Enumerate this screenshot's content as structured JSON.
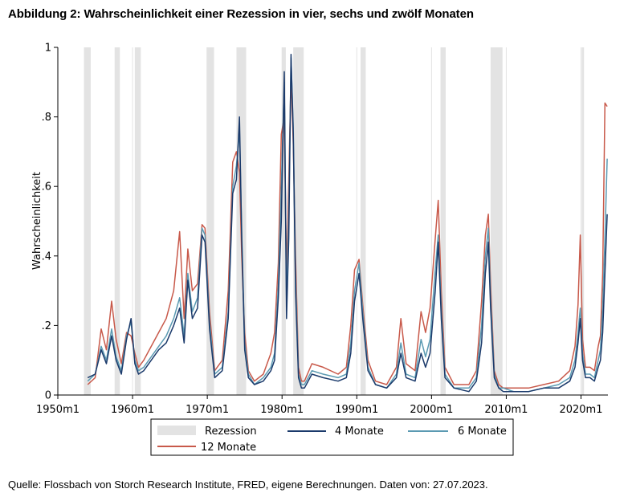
{
  "title": "Abbildung 2: Wahrscheinlichkeit einer Rezession in vier, sechs und zwölf Monaten",
  "source": "Quelle: Flossbach von Storch Research Institute, FRED, eigene Berechnungen. Daten von: 27.07.2023.",
  "chart_data": {
    "type": "line",
    "ylabel": "Wahrscheinlichkeit",
    "xlabel": "",
    "xlim": [
      1950,
      2023.6
    ],
    "ylim": [
      0,
      1
    ],
    "x_ticks": [
      {
        "value": 1950,
        "label": "1950m1"
      },
      {
        "value": 1960,
        "label": "1960m1"
      },
      {
        "value": 1970,
        "label": "1970m1"
      },
      {
        "value": 1980,
        "label": "1980m1"
      },
      {
        "value": 1990,
        "label": "1990m1"
      },
      {
        "value": 2000,
        "label": "2000m1"
      },
      {
        "value": 2010,
        "label": "2010m1"
      },
      {
        "value": 2020,
        "label": "2020m1"
      }
    ],
    "y_ticks": [
      {
        "value": 0,
        "label": "0"
      },
      {
        "value": 0.2,
        "label": ".2"
      },
      {
        "value": 0.4,
        "label": ".4"
      },
      {
        "value": 0.6,
        "label": ".6"
      },
      {
        "value": 0.8,
        "label": ".8"
      },
      {
        "value": 1,
        "label": "1"
      }
    ],
    "recessions": {
      "name": "Rezession",
      "color": "#e3e3e3",
      "periods": [
        [
          1953.5,
          1954.4
        ],
        [
          1957.6,
          1958.3
        ],
        [
          1960.3,
          1961.1
        ],
        [
          1969.9,
          1970.9
        ],
        [
          1973.9,
          1975.2
        ],
        [
          1980.0,
          1980.5
        ],
        [
          1981.5,
          1982.9
        ],
        [
          1990.5,
          1991.2
        ],
        [
          2001.2,
          2001.9
        ],
        [
          2007.9,
          2009.5
        ],
        [
          2020.1,
          2020.4
        ]
      ]
    },
    "series": [
      {
        "name": "4 Monate",
        "color": "#1b3a6b",
        "x": [
          1954.0,
          1955.0,
          1955.8,
          1956.5,
          1957.2,
          1957.8,
          1958.5,
          1959.2,
          1959.8,
          1960.3,
          1960.8,
          1961.5,
          1962.5,
          1963.5,
          1964.5,
          1965.5,
          1966.3,
          1966.9,
          1967.4,
          1968.0,
          1968.7,
          1969.3,
          1969.7,
          1970.3,
          1971.0,
          1972.0,
          1972.8,
          1973.4,
          1973.9,
          1974.3,
          1974.6,
          1975.0,
          1975.5,
          1976.3,
          1977.5,
          1978.5,
          1979.0,
          1979.5,
          1979.9,
          1980.3,
          1980.6,
          1980.9,
          1981.2,
          1981.5,
          1981.8,
          1982.2,
          1982.6,
          1983.0,
          1984.0,
          1985.5,
          1987.5,
          1988.6,
          1989.2,
          1989.7,
          1990.3,
          1990.8,
          1991.5,
          1992.5,
          1994.0,
          1995.3,
          1995.9,
          1996.6,
          1997.8,
          1998.6,
          1999.2,
          1999.8,
          2000.5,
          2000.9,
          2001.3,
          2001.8,
          2003.0,
          2005.0,
          2006.0,
          2006.7,
          2007.2,
          2007.6,
          2007.9,
          2008.4,
          2009.0,
          2009.6,
          2011.0,
          2013.0,
          2015.0,
          2017.0,
          2018.5,
          2019.2,
          2019.6,
          2019.9,
          2020.2,
          2020.6,
          2021.2,
          2021.8,
          2022.3,
          2022.6,
          2022.9,
          2023.2,
          2023.5
        ],
        "values": [
          0.05,
          0.06,
          0.13,
          0.09,
          0.17,
          0.1,
          0.06,
          0.16,
          0.22,
          0.09,
          0.06,
          0.07,
          0.1,
          0.13,
          0.15,
          0.2,
          0.25,
          0.15,
          0.33,
          0.22,
          0.25,
          0.46,
          0.44,
          0.19,
          0.05,
          0.07,
          0.22,
          0.58,
          0.62,
          0.8,
          0.45,
          0.13,
          0.05,
          0.03,
          0.04,
          0.07,
          0.1,
          0.28,
          0.5,
          0.93,
          0.22,
          0.45,
          0.98,
          0.75,
          0.3,
          0.05,
          0.02,
          0.02,
          0.06,
          0.05,
          0.04,
          0.05,
          0.12,
          0.27,
          0.35,
          0.22,
          0.07,
          0.03,
          0.02,
          0.05,
          0.12,
          0.05,
          0.04,
          0.12,
          0.08,
          0.12,
          0.3,
          0.44,
          0.22,
          0.05,
          0.02,
          0.01,
          0.04,
          0.15,
          0.35,
          0.44,
          0.25,
          0.05,
          0.02,
          0.01,
          0.01,
          0.01,
          0.02,
          0.02,
          0.04,
          0.08,
          0.15,
          0.22,
          0.1,
          0.05,
          0.05,
          0.04,
          0.08,
          0.1,
          0.18,
          0.35,
          0.52
        ]
      },
      {
        "name": "6 Monate",
        "color": "#5b9ab2",
        "x": [
          1954.0,
          1955.0,
          1955.8,
          1956.5,
          1957.2,
          1957.8,
          1958.5,
          1959.2,
          1959.8,
          1960.3,
          1960.8,
          1961.5,
          1962.5,
          1963.5,
          1964.5,
          1965.5,
          1966.3,
          1966.9,
          1967.4,
          1968.0,
          1968.7,
          1969.3,
          1969.7,
          1970.3,
          1971.0,
          1972.0,
          1972.8,
          1973.4,
          1973.9,
          1974.3,
          1974.6,
          1975.0,
          1975.5,
          1976.3,
          1977.5,
          1978.5,
          1979.0,
          1979.5,
          1979.9,
          1980.3,
          1980.6,
          1980.9,
          1981.2,
          1981.5,
          1981.8,
          1982.2,
          1982.6,
          1983.0,
          1984.0,
          1985.5,
          1987.5,
          1988.6,
          1989.2,
          1989.7,
          1990.3,
          1990.8,
          1991.5,
          1992.5,
          1994.0,
          1995.3,
          1995.9,
          1996.6,
          1997.8,
          1998.6,
          1999.2,
          1999.8,
          2000.5,
          2000.9,
          2001.3,
          2001.8,
          2003.0,
          2005.0,
          2006.0,
          2006.7,
          2007.2,
          2007.6,
          2007.9,
          2008.4,
          2009.0,
          2009.6,
          2011.0,
          2013.0,
          2015.0,
          2017.0,
          2018.5,
          2019.2,
          2019.6,
          2019.9,
          2020.2,
          2020.6,
          2021.2,
          2021.8,
          2022.3,
          2022.6,
          2022.9,
          2023.2,
          2023.5
        ],
        "values": [
          0.04,
          0.06,
          0.14,
          0.1,
          0.19,
          0.11,
          0.07,
          0.17,
          0.21,
          0.1,
          0.07,
          0.08,
          0.11,
          0.14,
          0.17,
          0.22,
          0.28,
          0.17,
          0.35,
          0.24,
          0.28,
          0.48,
          0.46,
          0.21,
          0.06,
          0.08,
          0.24,
          0.6,
          0.66,
          0.76,
          0.47,
          0.15,
          0.06,
          0.03,
          0.05,
          0.08,
          0.12,
          0.32,
          0.6,
          0.9,
          0.26,
          0.52,
          0.97,
          0.77,
          0.34,
          0.06,
          0.03,
          0.03,
          0.07,
          0.06,
          0.05,
          0.06,
          0.15,
          0.3,
          0.38,
          0.24,
          0.08,
          0.03,
          0.02,
          0.06,
          0.15,
          0.06,
          0.05,
          0.16,
          0.11,
          0.16,
          0.36,
          0.46,
          0.25,
          0.06,
          0.02,
          0.02,
          0.05,
          0.2,
          0.4,
          0.48,
          0.28,
          0.06,
          0.02,
          0.02,
          0.01,
          0.01,
          0.02,
          0.03,
          0.05,
          0.1,
          0.18,
          0.25,
          0.12,
          0.06,
          0.06,
          0.05,
          0.1,
          0.13,
          0.25,
          0.45,
          0.68
        ]
      },
      {
        "name": "12 Monate",
        "color": "#c8594a",
        "x": [
          1954.0,
          1955.0,
          1955.8,
          1956.5,
          1957.2,
          1957.8,
          1958.5,
          1959.2,
          1959.8,
          1960.3,
          1960.8,
          1961.5,
          1962.5,
          1963.5,
          1964.5,
          1965.5,
          1966.3,
          1966.9,
          1967.4,
          1968.0,
          1968.7,
          1969.3,
          1969.7,
          1970.3,
          1971.0,
          1972.0,
          1972.8,
          1973.4,
          1973.9,
          1974.3,
          1974.6,
          1975.0,
          1975.5,
          1976.3,
          1977.5,
          1978.5,
          1979.0,
          1979.5,
          1979.9,
          1980.3,
          1980.6,
          1980.9,
          1981.2,
          1981.5,
          1981.8,
          1982.2,
          1982.6,
          1983.0,
          1984.0,
          1985.5,
          1987.5,
          1988.6,
          1989.2,
          1989.7,
          1990.3,
          1990.8,
          1991.5,
          1992.5,
          1994.0,
          1995.3,
          1995.9,
          1996.6,
          1997.8,
          1998.6,
          1999.2,
          1999.8,
          2000.5,
          2000.9,
          2001.3,
          2001.8,
          2003.0,
          2005.0,
          2006.0,
          2006.7,
          2007.2,
          2007.6,
          2007.9,
          2008.4,
          2009.0,
          2009.6,
          2011.0,
          2013.0,
          2015.0,
          2017.0,
          2018.5,
          2019.2,
          2019.6,
          2019.9,
          2020.2,
          2020.6,
          2021.2,
          2021.8,
          2022.3,
          2022.6,
          2022.9,
          2023.2,
          2023.5
        ],
        "values": [
          0.03,
          0.05,
          0.19,
          0.13,
          0.27,
          0.16,
          0.09,
          0.18,
          0.17,
          0.12,
          0.08,
          0.1,
          0.14,
          0.18,
          0.22,
          0.3,
          0.47,
          0.22,
          0.42,
          0.3,
          0.32,
          0.49,
          0.48,
          0.24,
          0.07,
          0.1,
          0.3,
          0.67,
          0.7,
          0.64,
          0.4,
          0.18,
          0.07,
          0.04,
          0.06,
          0.12,
          0.18,
          0.38,
          0.75,
          0.8,
          0.34,
          0.62,
          0.92,
          0.72,
          0.4,
          0.08,
          0.04,
          0.04,
          0.09,
          0.08,
          0.06,
          0.08,
          0.2,
          0.36,
          0.39,
          0.26,
          0.1,
          0.04,
          0.03,
          0.08,
          0.22,
          0.09,
          0.07,
          0.24,
          0.18,
          0.25,
          0.45,
          0.56,
          0.3,
          0.08,
          0.03,
          0.03,
          0.07,
          0.27,
          0.46,
          0.52,
          0.32,
          0.07,
          0.03,
          0.02,
          0.02,
          0.02,
          0.03,
          0.04,
          0.07,
          0.14,
          0.26,
          0.46,
          0.16,
          0.08,
          0.08,
          0.07,
          0.14,
          0.17,
          0.35,
          0.84,
          0.83
        ]
      }
    ],
    "legend": {
      "placement": "bottom-center",
      "rows": [
        [
          "Rezession",
          "4 Monate",
          "6 Monate"
        ],
        [
          "12 Monate"
        ]
      ]
    },
    "grid": {
      "vertical": true,
      "horizontal": false,
      "color": "#e3e3e3"
    }
  }
}
